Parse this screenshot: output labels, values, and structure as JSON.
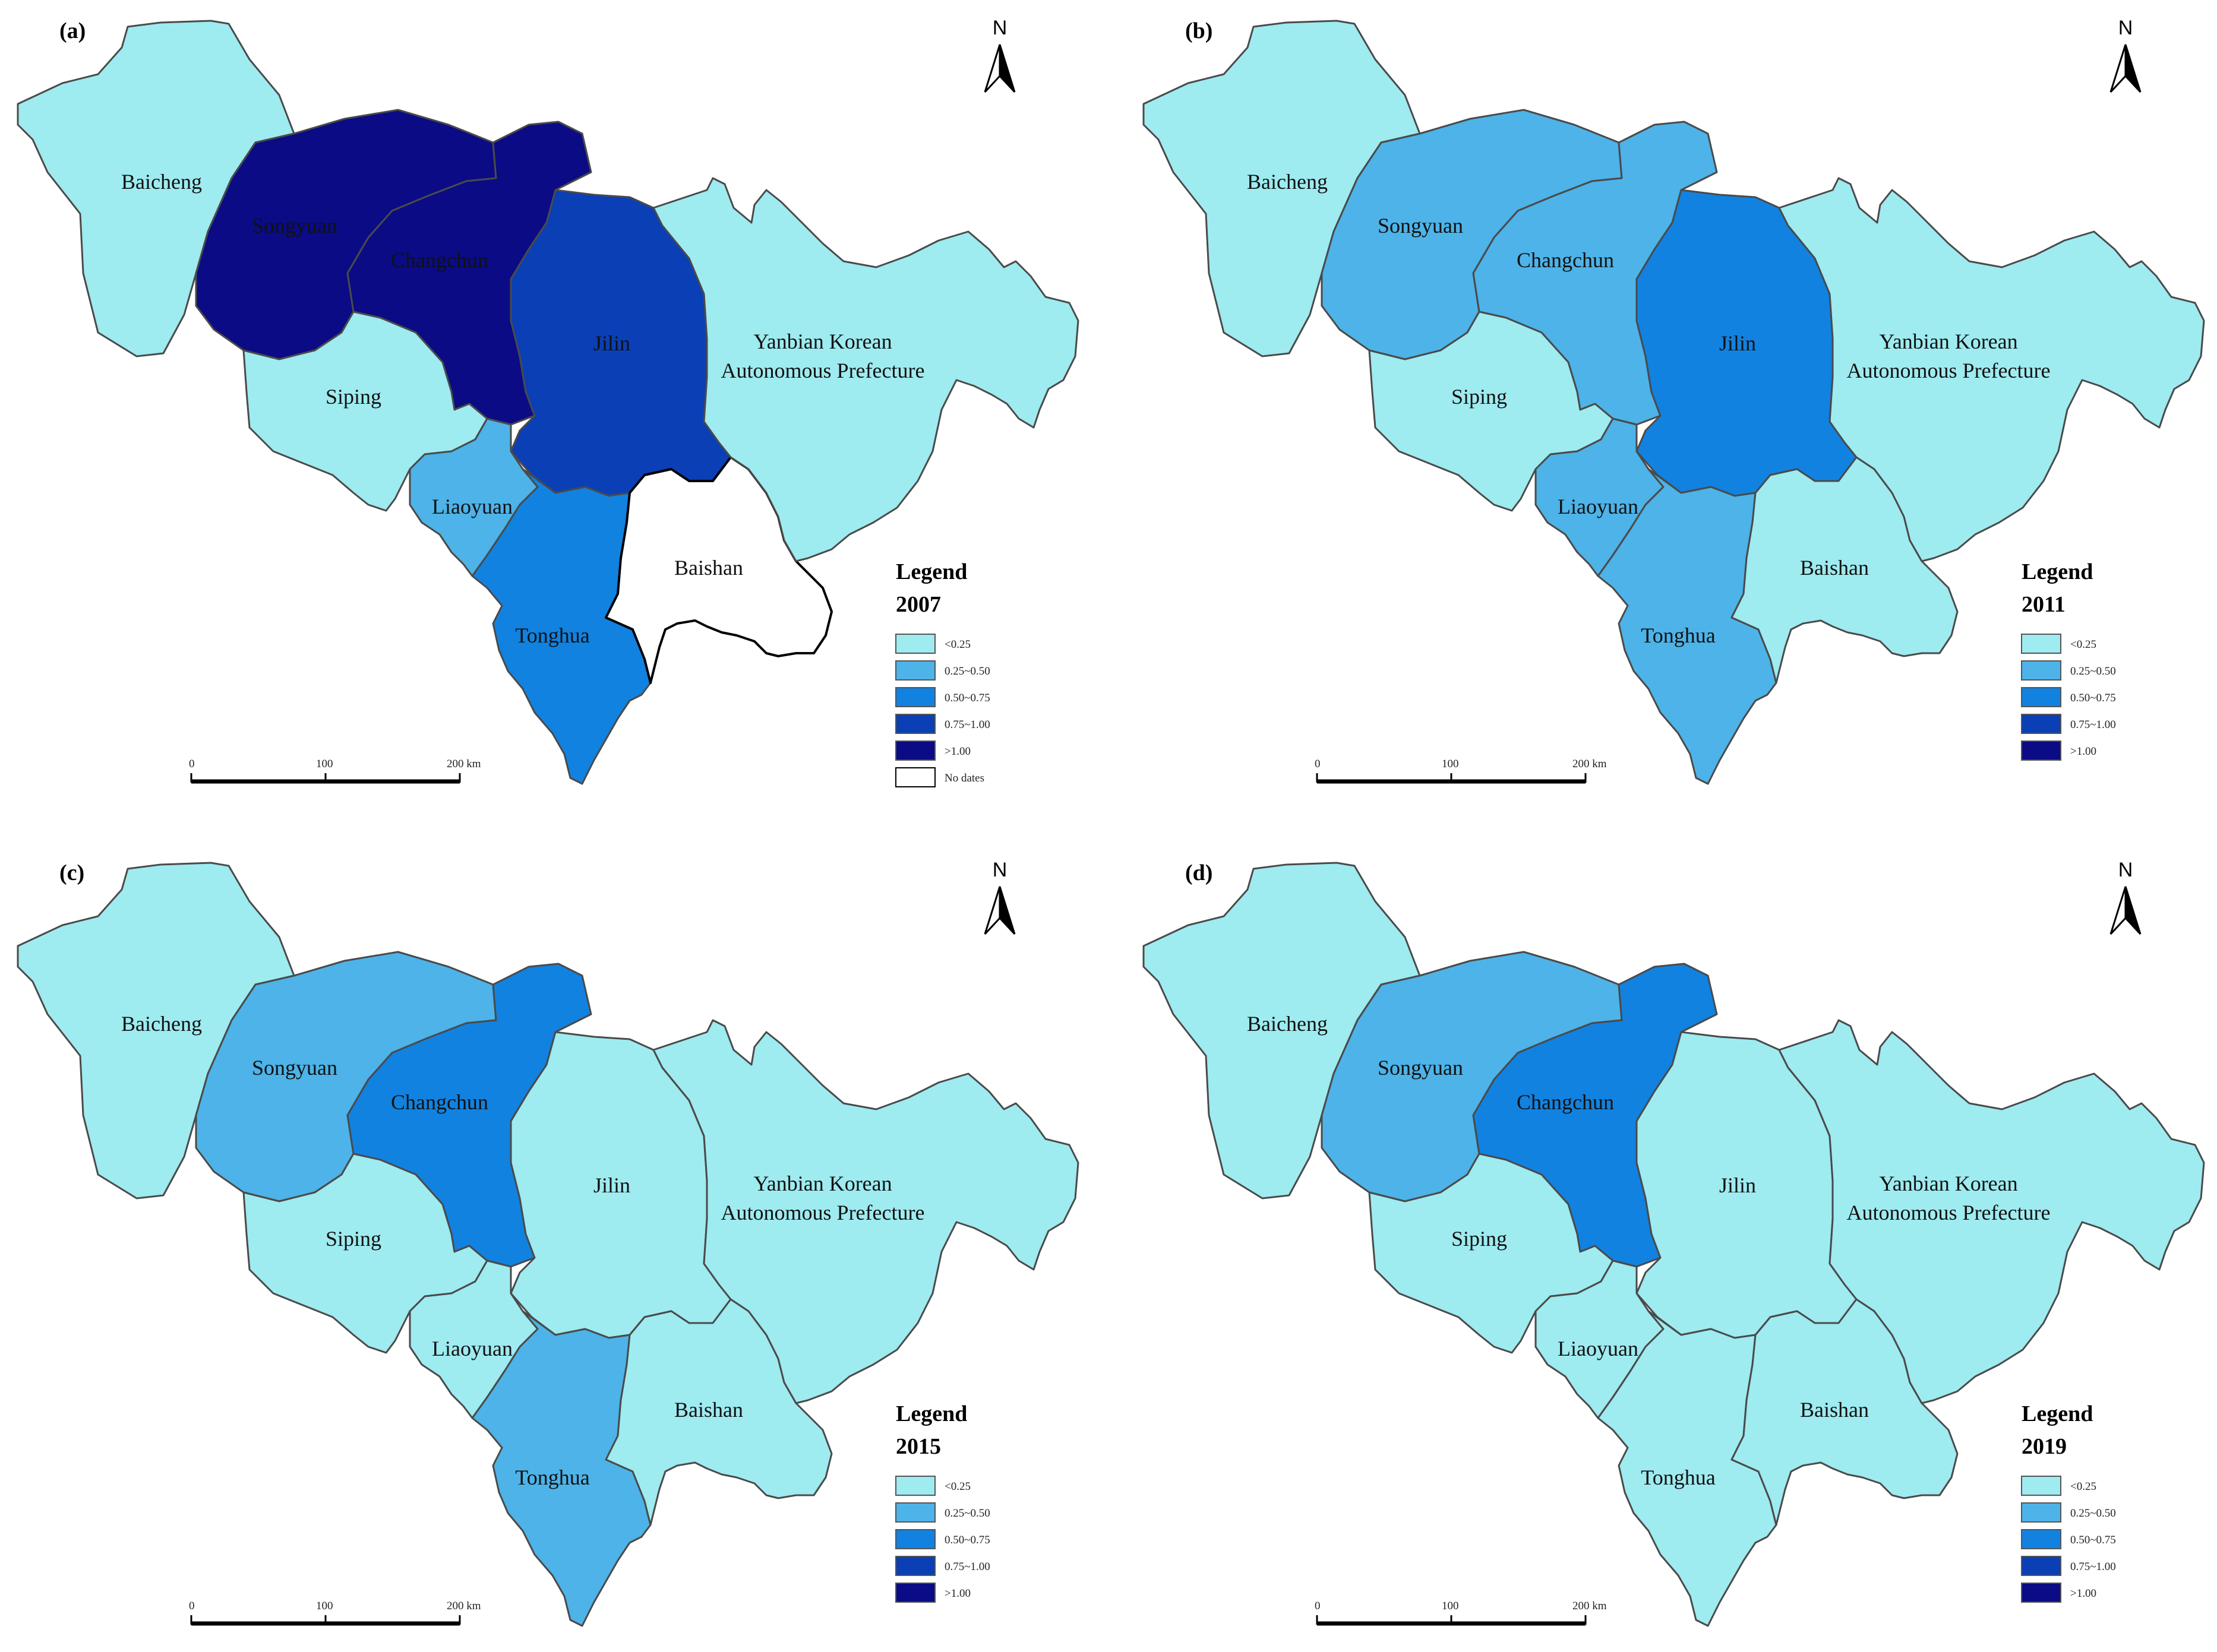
{
  "colors": {
    "lt_0_25": "#9eebf0",
    "c_0_25_0_50": "#4db3e8",
    "c_0_50_0_75": "#1182e0",
    "c_0_75_1_00": "#0a3fb5",
    "gt_1_00": "#0a0b85",
    "no_data": "#ffffff"
  },
  "north_label": "N",
  "scale_bar": {
    "ticks": [
      "0",
      "100",
      "200 km"
    ]
  },
  "legend_classes": [
    {
      "key": "lt_0_25",
      "label": "<0.25"
    },
    {
      "key": "c_0_25_0_50",
      "label": "0.25~0.50"
    },
    {
      "key": "c_0_50_0_75",
      "label": "0.50~0.75"
    },
    {
      "key": "c_0_75_1_00",
      "label": "0.75~1.00"
    },
    {
      "key": "gt_1_00",
      "label": ">1.00"
    }
  ],
  "no_data_label": "No dates",
  "legend_word": "Legend",
  "region_labels": {
    "Baicheng": "Baicheng",
    "Songyuan": "Songyuan",
    "Changchun": "Changchun",
    "Jilin": "Jilin",
    "Siping": "Siping",
    "Liaoyuan": "Liaoyuan",
    "Tonghua": "Tonghua",
    "Baishan": "Baishan",
    "Yanbian_1": "Yanbian Korean",
    "Yanbian_2": "Autonomous Prefecture"
  },
  "panels": [
    {
      "letter": "(a)",
      "year": "2007",
      "show_no_data": true,
      "regions": {
        "Baicheng": "lt_0_25",
        "Songyuan": "gt_1_00",
        "Changchun": "gt_1_00",
        "Jilin": "c_0_75_1_00",
        "Siping": "lt_0_25",
        "Liaoyuan": "c_0_25_0_50",
        "Tonghua": "c_0_50_0_75",
        "Baishan": "no_data",
        "Yanbian": "lt_0_25"
      }
    },
    {
      "letter": "(b)",
      "year": "2011",
      "show_no_data": false,
      "regions": {
        "Baicheng": "lt_0_25",
        "Songyuan": "c_0_25_0_50",
        "Changchun": "c_0_25_0_50",
        "Jilin": "c_0_50_0_75",
        "Siping": "lt_0_25",
        "Liaoyuan": "c_0_25_0_50",
        "Tonghua": "c_0_25_0_50",
        "Baishan": "lt_0_25",
        "Yanbian": "lt_0_25"
      }
    },
    {
      "letter": "(c)",
      "year": "2015",
      "show_no_data": false,
      "regions": {
        "Baicheng": "lt_0_25",
        "Songyuan": "c_0_25_0_50",
        "Changchun": "c_0_50_0_75",
        "Jilin": "lt_0_25",
        "Siping": "lt_0_25",
        "Liaoyuan": "lt_0_25",
        "Tonghua": "c_0_25_0_50",
        "Baishan": "lt_0_25",
        "Yanbian": "lt_0_25"
      }
    },
    {
      "letter": "(d)",
      "year": "2019",
      "show_no_data": false,
      "regions": {
        "Baicheng": "lt_0_25",
        "Songyuan": "c_0_25_0_50",
        "Changchun": "c_0_50_0_75",
        "Jilin": "lt_0_25",
        "Siping": "lt_0_25",
        "Liaoyuan": "lt_0_25",
        "Tonghua": "lt_0_25",
        "Baishan": "lt_0_25",
        "Yanbian": "lt_0_25"
      }
    }
  ]
}
